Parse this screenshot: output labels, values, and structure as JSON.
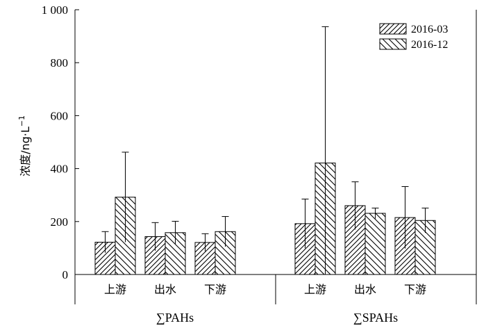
{
  "chart_data": {
    "type": "bar",
    "ylabel": "浓度/ng·L",
    "ylabel_superscript": "−1",
    "ylim": [
      0,
      1000
    ],
    "yticks": [
      0,
      200,
      400,
      600,
      800,
      1000
    ],
    "ytick_labels": [
      "0",
      "200",
      "400",
      "600",
      "800",
      "1 000"
    ],
    "grid": false,
    "legend_position": "top-right",
    "groups": [
      {
        "name": "∑PAHs",
        "categories": [
          "上游",
          "出水",
          "下游"
        ]
      },
      {
        "name": "∑SPAHs",
        "categories": [
          "上游",
          "出水",
          "下游"
        ]
      }
    ],
    "series": [
      {
        "name": "2016-03",
        "hatch": "forward",
        "values": [
          122,
          143,
          121,
          192,
          260,
          215
        ],
        "errors": [
          40,
          53,
          33,
          93,
          90,
          117
        ]
      },
      {
        "name": "2016-12",
        "hatch": "backward",
        "values": [
          292,
          158,
          162,
          421,
          231,
          204
        ],
        "errors": [
          170,
          43,
          57,
          515,
          20,
          47
        ]
      }
    ]
  }
}
